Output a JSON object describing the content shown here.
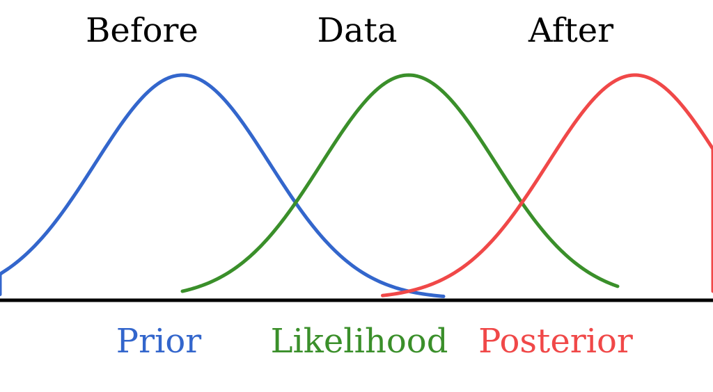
{
  "headings": {
    "before": "Before",
    "data": "Data",
    "after": "After"
  },
  "labels": {
    "prior": "Prior",
    "likelihood": "Likelihood",
    "posterior": "Posterior"
  },
  "colors": {
    "prior": "#3366cc",
    "likelihood": "#3a8f2a",
    "posterior": "#f04848",
    "axis": "#000000"
  },
  "curves": [
    {
      "id": "prior",
      "color_key": "prior",
      "center": 0.0,
      "sd": 1.0,
      "range": [
        -2.8,
        3.0
      ]
    },
    {
      "id": "likelihood",
      "color_key": "likelihood",
      "center": 2.6,
      "sd": 1.0,
      "range": [
        0.0,
        5.0
      ]
    },
    {
      "id": "posterior",
      "color_key": "posterior",
      "center": 5.2,
      "sd": 1.0,
      "range": [
        2.3,
        7.8
      ]
    }
  ]
}
